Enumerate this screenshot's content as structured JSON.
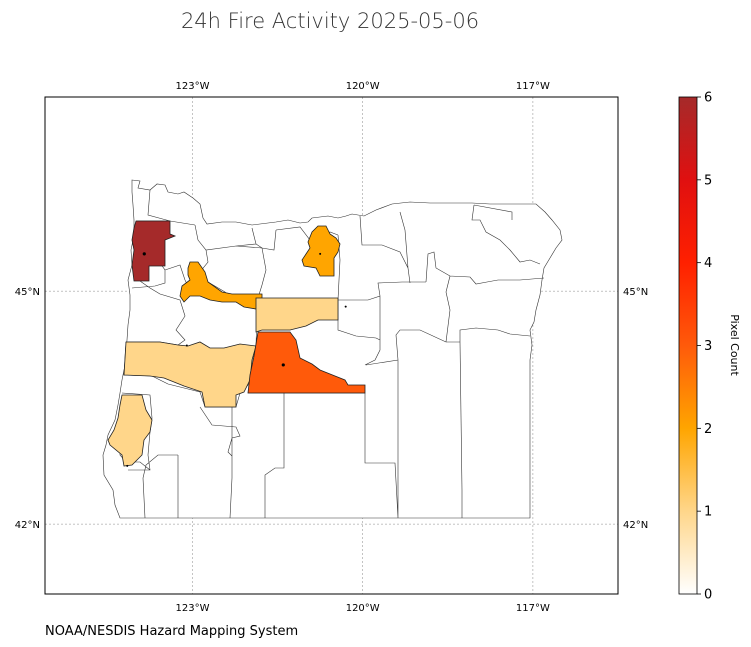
{
  "figure": {
    "title": "24h Fire Activity 2025-05-06",
    "credit": "NOAA/NESDIS Hazard Mapping System"
  },
  "map": {
    "region": "Oregon counties",
    "projection": "PlateCarree",
    "lon_range": [
      -125.6,
      -115.5
    ],
    "lat_range": [
      41.1,
      47.5
    ],
    "gridlines": true,
    "gridline_style": "dotted",
    "lon_ticks": [
      {
        "value": -123,
        "label": "123°W"
      },
      {
        "value": -120,
        "label": "120°W"
      },
      {
        "value": -117,
        "label": "117°W"
      }
    ],
    "lat_ticks": [
      {
        "value": 45,
        "label": "45°N"
      },
      {
        "value": 42,
        "label": "42°N"
      }
    ],
    "outline_color": "#333333",
    "no_fire_fill": "#ffffff"
  },
  "colorbar": {
    "label": "Pixel Count",
    "range": [
      0,
      6
    ],
    "ticks": [
      {
        "value": 0,
        "label": "0"
      },
      {
        "value": 1,
        "label": "1"
      },
      {
        "value": 2,
        "label": "2"
      },
      {
        "value": 3,
        "label": "3"
      },
      {
        "value": 4,
        "label": "4"
      },
      {
        "value": 5,
        "label": "5"
      },
      {
        "value": 6,
        "label": "6"
      }
    ],
    "colormap": [
      {
        "value": 0,
        "color": "#ffffff"
      },
      {
        "value": 1,
        "color": "#ffd68a"
      },
      {
        "value": 2,
        "color": "#ffa500"
      },
      {
        "value": 3,
        "color": "#ff5a0a"
      },
      {
        "value": 4,
        "color": "#ff2000"
      },
      {
        "value": 5,
        "color": "#e01010"
      },
      {
        "value": 6,
        "color": "#a52a2a"
      }
    ]
  },
  "fire_counties": [
    {
      "pixel_count": 6,
      "fire_points": [
        [
          -123.85,
          45.48
        ]
      ]
    },
    {
      "pixel_count": 2,
      "fire_points": [
        [
          -120.75,
          45.48
        ]
      ]
    },
    {
      "pixel_count": 2,
      "fire_points": []
    },
    {
      "pixel_count": 1,
      "fire_points": [
        [
          -120.3,
          44.8
        ]
      ]
    },
    {
      "pixel_count": 1,
      "fire_points": [
        [
          -123.1,
          44.3
        ]
      ]
    },
    {
      "pixel_count": 3,
      "fire_points": [
        [
          -121.4,
          44.05
        ]
      ]
    },
    {
      "pixel_count": 1,
      "fire_points": [
        [
          -124.15,
          42.75
        ]
      ]
    }
  ]
}
